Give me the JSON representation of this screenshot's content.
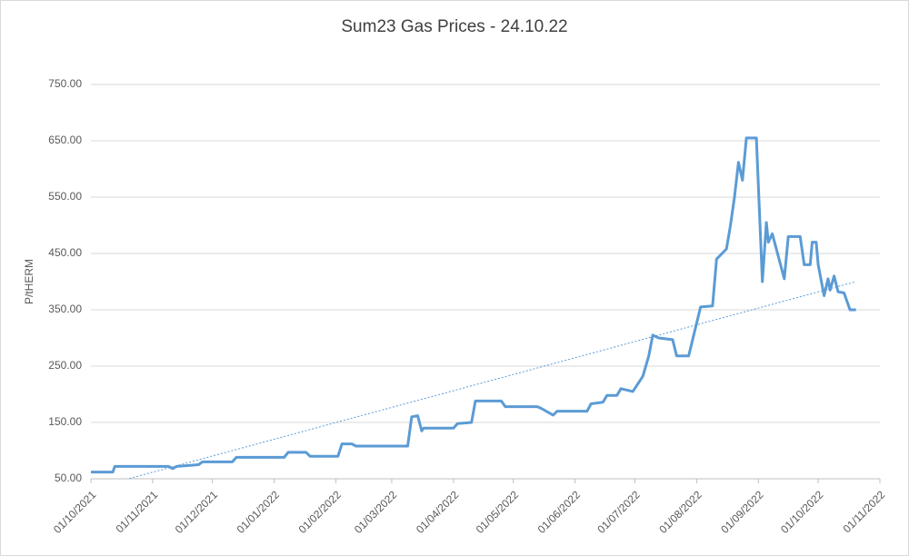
{
  "chart_data": {
    "type": "line",
    "title": "Sum23 Gas Prices - 24.10.22",
    "y_label": "P/tHERM",
    "x": [
      "2021-10-01",
      "2021-10-12",
      "2021-10-13",
      "2021-11-09",
      "2021-11-11",
      "2021-11-13",
      "2021-11-24",
      "2021-11-26",
      "2021-12-11",
      "2021-12-13",
      "2022-01-06",
      "2022-01-08",
      "2022-01-17",
      "2022-01-19",
      "2022-02-02",
      "2022-02-04",
      "2022-02-09",
      "2022-02-11",
      "2022-03-09",
      "2022-03-11",
      "2022-03-14",
      "2022-03-16",
      "2022-03-17",
      "2022-04-01",
      "2022-04-03",
      "2022-04-10",
      "2022-04-12",
      "2022-04-25",
      "2022-04-27",
      "2022-05-13",
      "2022-05-15",
      "2022-05-21",
      "2022-05-23",
      "2022-06-07",
      "2022-06-09",
      "2022-06-15",
      "2022-06-17",
      "2022-06-22",
      "2022-06-24",
      "2022-06-30",
      "2022-07-05",
      "2022-07-08",
      "2022-07-10",
      "2022-07-13",
      "2022-07-20",
      "2022-07-22",
      "2022-07-28",
      "2022-08-03",
      "2022-08-09",
      "2022-08-11",
      "2022-08-16",
      "2022-08-18",
      "2022-08-20",
      "2022-08-22",
      "2022-08-24",
      "2022-08-26",
      "2022-08-31",
      "2022-09-03",
      "2022-09-05",
      "2022-09-06",
      "2022-09-08",
      "2022-09-14",
      "2022-09-16",
      "2022-09-22",
      "2022-09-24",
      "2022-09-27",
      "2022-09-28",
      "2022-09-30",
      "2022-10-01",
      "2022-10-04",
      "2022-10-06",
      "2022-10-07",
      "2022-10-09",
      "2022-10-11",
      "2022-10-14",
      "2022-10-17",
      "2022-10-20"
    ],
    "values": [
      62,
      62,
      72,
      72,
      68,
      72,
      75,
      80,
      80,
      88,
      88,
      97,
      97,
      90,
      90,
      112,
      112,
      108,
      108,
      160,
      162,
      135,
      140,
      140,
      148,
      150,
      188,
      188,
      178,
      178,
      175,
      163,
      170,
      170,
      183,
      186,
      198,
      198,
      210,
      205,
      232,
      268,
      305,
      300,
      297,
      268,
      268,
      355,
      357,
      440,
      458,
      500,
      550,
      612,
      580,
      655,
      655,
      400,
      505,
      470,
      485,
      405,
      480,
      480,
      430,
      430,
      470,
      470,
      430,
      375,
      405,
      385,
      410,
      382,
      380,
      350,
      350
    ],
    "color": "#5b9bd5",
    "trendline": {
      "x": [
        "2021-10-01",
        "2022-10-20"
      ],
      "values": [
        32,
        400
      ],
      "color": "#5b9bd5"
    },
    "xlim": [
      "2021-10-01",
      "2022-11-01"
    ],
    "xticks": [
      {
        "value": "2021-10-01",
        "label": "01/10/2021"
      },
      {
        "value": "2021-11-01",
        "label": "01/11/2021"
      },
      {
        "value": "2021-12-01",
        "label": "01/12/2021"
      },
      {
        "value": "2022-01-01",
        "label": "01/01/2022"
      },
      {
        "value": "2022-02-01",
        "label": "01/02/2022"
      },
      {
        "value": "2022-03-01",
        "label": "01/03/2022"
      },
      {
        "value": "2022-04-01",
        "label": "01/04/2022"
      },
      {
        "value": "2022-05-01",
        "label": "01/05/2022"
      },
      {
        "value": "2022-06-01",
        "label": "01/06/2022"
      },
      {
        "value": "2022-07-01",
        "label": "01/07/2022"
      },
      {
        "value": "2022-08-01",
        "label": "01/08/2022"
      },
      {
        "value": "2022-09-01",
        "label": "01/09/2022"
      },
      {
        "value": "2022-10-01",
        "label": "01/10/2022"
      },
      {
        "value": "2022-11-01",
        "label": "01/11/2022"
      }
    ],
    "ylim": [
      50,
      750
    ],
    "yticks": [
      {
        "value": 50,
        "label": "50.00"
      },
      {
        "value": 150,
        "label": "150.00"
      },
      {
        "value": 250,
        "label": "250.00"
      },
      {
        "value": 350,
        "label": "350.00"
      },
      {
        "value": 450,
        "label": "450.00"
      },
      {
        "value": 550,
        "label": "550.00"
      },
      {
        "value": 650,
        "label": "650.00"
      },
      {
        "value": 750,
        "label": "750.00"
      }
    ],
    "grid": true
  }
}
